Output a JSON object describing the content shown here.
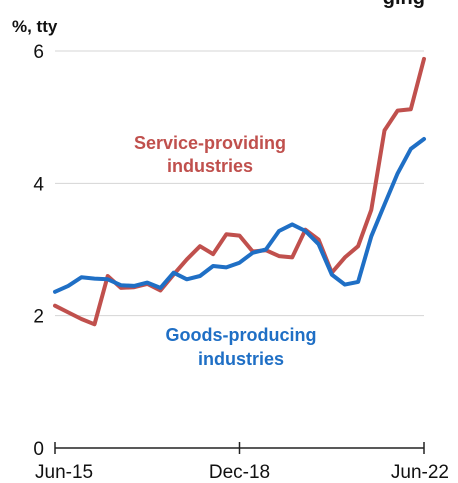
{
  "chart_data": {
    "type": "line",
    "title": "ging",
    "ylabel": "%, tty",
    "ylim": [
      0,
      6
    ],
    "yticks": [
      0,
      2,
      4,
      6
    ],
    "xticks": [
      "Jun-15",
      "Dec-18",
      "Jun-22"
    ],
    "grid": true,
    "x": [
      "Jun-15",
      "Sep-15",
      "Dec-15",
      "Mar-16",
      "Jun-16",
      "Sep-16",
      "Dec-16",
      "Mar-17",
      "Jun-17",
      "Sep-17",
      "Dec-17",
      "Mar-18",
      "Jun-18",
      "Sep-18",
      "Dec-18",
      "Mar-19",
      "Jun-19",
      "Sep-19",
      "Dec-19",
      "Mar-20",
      "Jun-20",
      "Sep-20",
      "Dec-20",
      "Mar-21",
      "Jun-21",
      "Sep-21",
      "Dec-21",
      "Mar-22",
      "Jun-22"
    ],
    "series": [
      {
        "name": "Service-providing industries",
        "color": "#c0504d",
        "values": [
          2.15,
          2.05,
          1.95,
          1.87,
          2.6,
          2.42,
          2.43,
          2.48,
          2.38,
          2.62,
          2.85,
          3.05,
          2.93,
          3.23,
          3.21,
          2.97,
          2.99,
          2.9,
          2.88,
          3.3,
          3.15,
          2.65,
          2.88,
          3.05,
          3.6,
          4.8,
          5.1,
          5.12,
          5.88
        ]
      },
      {
        "name": "Goods-producing industries",
        "color": "#1f6fc5",
        "values": [
          2.36,
          2.45,
          2.58,
          2.56,
          2.55,
          2.46,
          2.45,
          2.5,
          2.42,
          2.65,
          2.55,
          2.6,
          2.75,
          2.73,
          2.8,
          2.95,
          3.0,
          3.28,
          3.38,
          3.28,
          3.08,
          2.62,
          2.47,
          2.51,
          3.2,
          3.68,
          4.15,
          4.52,
          4.67
        ]
      }
    ]
  },
  "annotations": {
    "service_line1": "Service-providing",
    "service_line2": "industries",
    "goods_line1": "Goods-producing",
    "goods_line2": "industries"
  }
}
